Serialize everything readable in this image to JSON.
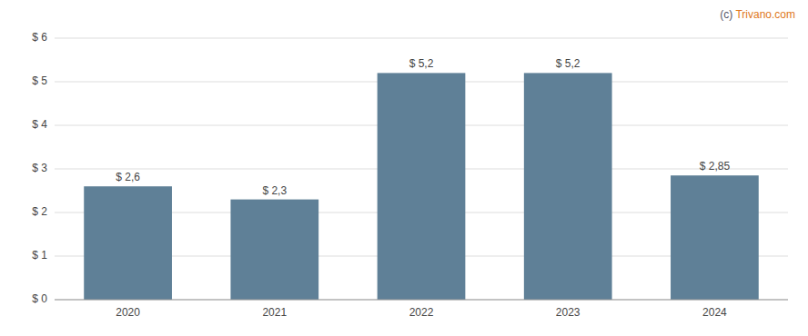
{
  "chart_data": {
    "type": "bar",
    "categories": [
      "2020",
      "2021",
      "2022",
      "2023",
      "2024"
    ],
    "values": [
      2.6,
      2.3,
      5.2,
      5.2,
      2.85
    ],
    "value_labels": [
      "$ 2,6",
      "$ 2,3",
      "$ 5,2",
      "$ 5,2",
      "$ 2,85"
    ],
    "data_labels": true,
    "color": "#5f8097",
    "ylim": [
      0,
      6
    ],
    "yticks": [
      {
        "value": 0,
        "label": "$ 0"
      },
      {
        "value": 1,
        "label": "$ 1"
      },
      {
        "value": 2,
        "label": "$ 2"
      },
      {
        "value": 3,
        "label": "$ 3"
      },
      {
        "value": 4,
        "label": "$ 4"
      },
      {
        "value": 5,
        "label": "$ 5"
      },
      {
        "value": 6,
        "label": "$ 6"
      }
    ],
    "grid": true,
    "annotations": [
      {
        "text": "(c) ",
        "color": "#555566"
      },
      {
        "text": "Trivano.com",
        "color": "#e07820"
      }
    ]
  }
}
